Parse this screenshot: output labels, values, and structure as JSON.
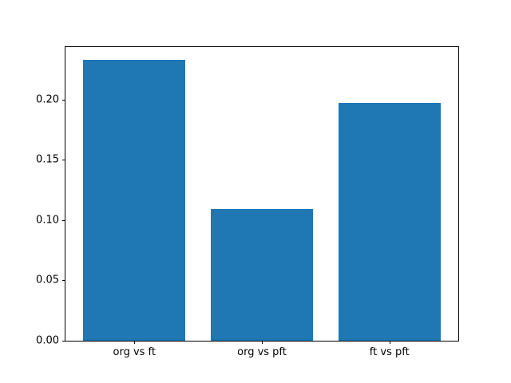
{
  "chart_data": {
    "type": "bar",
    "categories": [
      "org vs ft",
      "org vs pft",
      "ft vs pft"
    ],
    "values": [
      0.233,
      0.109,
      0.197
    ],
    "title": "",
    "xlabel": "",
    "ylabel": "",
    "ylim": [
      0,
      0.2434
    ],
    "yticks": [
      0.0,
      0.05,
      0.1,
      0.15,
      0.2
    ],
    "ytick_labels": [
      "0.00",
      "0.05",
      "0.10",
      "0.15",
      "0.20"
    ],
    "bar_color": "#1f77b4",
    "axis_color": "#000000",
    "background_color": "#ffffff",
    "grid": false,
    "legend_position": "none",
    "bar_width_fraction": 0.8
  }
}
